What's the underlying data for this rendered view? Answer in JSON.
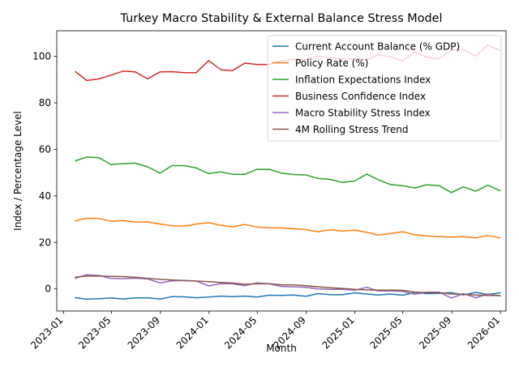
{
  "chart_data": {
    "type": "line",
    "title": "Turkey Macro Stability & External Balance Stress Model",
    "xlabel": "Month",
    "ylabel": "Index / Percentage Level",
    "ylim": [
      -9.5,
      111
    ],
    "xlim": [
      "2022-12-15",
      "2026-01-15"
    ],
    "yticks": [
      0,
      20,
      40,
      60,
      80,
      100
    ],
    "xticks": [
      {
        "date": "2023-01-01",
        "label": "2023-01"
      },
      {
        "date": "2023-05-01",
        "label": "2023-05"
      },
      {
        "date": "2023-09-01",
        "label": "2023-09"
      },
      {
        "date": "2024-01-01",
        "label": "2024-01"
      },
      {
        "date": "2024-05-01",
        "label": "2024-05"
      },
      {
        "date": "2024-09-01",
        "label": "2024-09"
      },
      {
        "date": "2025-01-01",
        "label": "2025-01"
      },
      {
        "date": "2025-05-01",
        "label": "2025-05"
      },
      {
        "date": "2025-09-01",
        "label": "2025-09"
      },
      {
        "date": "2026-01-01",
        "label": "2026-01"
      }
    ],
    "legend_position": "top-right",
    "x_start": "2023-01-31",
    "x_count": 36,
    "x_freq": "month-end",
    "series": [
      {
        "name": "Current Account Balance (% GDP)",
        "color": "#1f77b4",
        "values": [
          -3.8,
          -4.4,
          -4.2,
          -3.9,
          -4.3,
          -3.9,
          -3.8,
          -4.4,
          -3.3,
          -3.4,
          -3.8,
          -3.5,
          -3.1,
          -3.3,
          -3.1,
          -3.5,
          -2.7,
          -2.8,
          -2.6,
          -3.2,
          -2.0,
          -2.5,
          -2.5,
          -1.7,
          -2.2,
          -2.6,
          -2.2,
          -2.7,
          -1.6,
          -2.0,
          -1.9,
          -1.6,
          -2.6,
          -1.5,
          -2.4,
          -1.7
        ]
      },
      {
        "name": "Policy Rate (%)",
        "color": "#ff7f0e",
        "values": [
          29.3,
          30.4,
          30.3,
          29.1,
          29.4,
          28.7,
          28.8,
          27.9,
          27.2,
          27.0,
          27.9,
          28.5,
          27.3,
          26.7,
          27.7,
          26.6,
          26.3,
          26.2,
          25.9,
          25.5,
          24.6,
          25.4,
          24.9,
          25.3,
          24.3,
          23.2,
          23.8,
          24.6,
          23.3,
          22.8,
          22.5,
          22.3,
          22.5,
          21.9,
          23.0,
          21.9
        ]
      },
      {
        "name": "Inflation Expectations Index",
        "color": "#2ca02c",
        "values": [
          55.1,
          56.7,
          56.4,
          53.5,
          53.9,
          54.1,
          52.5,
          49.8,
          53.0,
          53.0,
          52.0,
          49.6,
          50.3,
          49.3,
          49.3,
          51.4,
          51.4,
          49.8,
          49.2,
          49.0,
          47.5,
          47.1,
          45.8,
          46.4,
          49.4,
          47.0,
          44.9,
          44.4,
          43.4,
          44.8,
          44.4,
          41.4,
          43.9,
          42.0,
          44.6,
          42.3
        ]
      },
      {
        "name": "Business Confidence Index",
        "color": "#d62728",
        "values": [
          93.4,
          89.6,
          90.3,
          91.9,
          93.7,
          93.3,
          90.3,
          93.3,
          93.4,
          93.0,
          93.0,
          98.2,
          94.2,
          93.9,
          97.1,
          96.5,
          96.5,
          98.1,
          98.6,
          98.6,
          100.0,
          99.4,
          98.8,
          99.0,
          98.4,
          100.7,
          99.8,
          98.1,
          101.8,
          99.7,
          99.0,
          102.6,
          103.0,
          100.1,
          104.8,
          102.6
        ]
      },
      {
        "name": "Macro Stability Stress Index",
        "color": "#9467bd",
        "values": [
          4.6,
          6.1,
          5.8,
          4.5,
          4.4,
          4.6,
          4.3,
          2.6,
          3.5,
          3.6,
          3.4,
          1.3,
          2.3,
          2.2,
          1.4,
          2.6,
          2.2,
          1.1,
          0.9,
          0.7,
          0.0,
          -0.2,
          -0.2,
          -0.6,
          0.7,
          -0.9,
          -0.9,
          -1.0,
          -2.3,
          -1.4,
          -1.4,
          -3.9,
          -2.0,
          -3.8,
          -2.2,
          -3.0
        ]
      },
      {
        "name": "4M Rolling Stress Trend",
        "color": "#8c564b",
        "values": [
          5.1,
          5.5,
          5.5,
          5.4,
          5.3,
          5.0,
          4.5,
          4.1,
          3.8,
          3.6,
          3.4,
          3.1,
          2.8,
          2.5,
          2.0,
          2.2,
          2.2,
          1.8,
          1.7,
          1.4,
          0.9,
          0.5,
          0.2,
          -0.2,
          -0.4,
          -0.5,
          -0.5,
          -0.6,
          -1.4,
          -1.6,
          -1.6,
          -2.2,
          -2.3,
          -2.6,
          -2.8,
          -2.9
        ]
      }
    ]
  }
}
